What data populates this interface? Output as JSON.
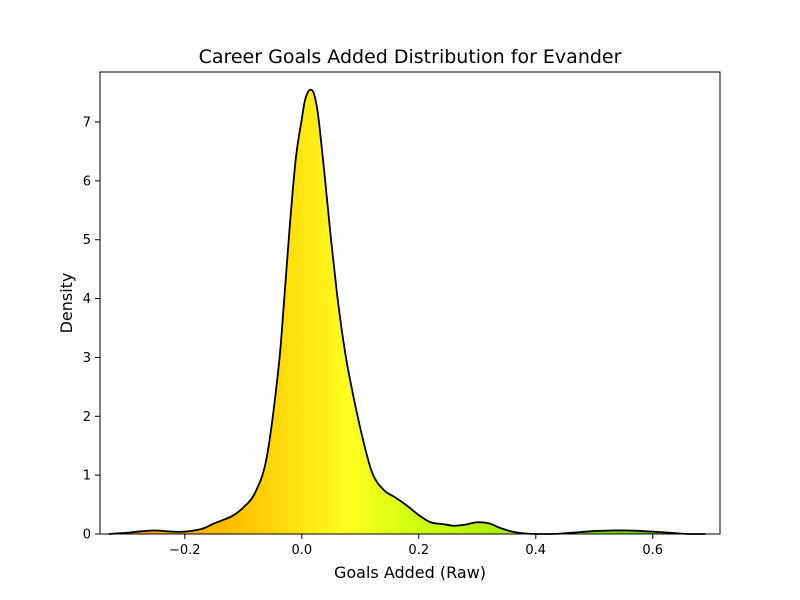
{
  "chart_data": {
    "type": "area",
    "title": "Career Goals Added Distribution for Evander",
    "xlabel": "Goals Added (Raw)",
    "ylabel": "Density",
    "xlim": [
      -0.345,
      0.715
    ],
    "ylim": [
      0,
      7.85
    ],
    "x_ticks": [
      -0.2,
      0.0,
      0.2,
      0.4,
      0.6
    ],
    "x_tick_labels": [
      "−0.2",
      "0.0",
      "0.2",
      "0.4",
      "0.6"
    ],
    "y_ticks": [
      0,
      1,
      2,
      3,
      4,
      5,
      6,
      7
    ],
    "y_tick_labels": [
      "0",
      "1",
      "2",
      "3",
      "4",
      "5",
      "6",
      "7"
    ],
    "grid": false,
    "line_color": "#000000",
    "fill_gradient": [
      {
        "x": -0.33,
        "color": "#ff8c00"
      },
      {
        "x": -0.1,
        "color": "#ffc400"
      },
      {
        "x": 0.0,
        "color": "#ffe612"
      },
      {
        "x": 0.08,
        "color": "#ffff20"
      },
      {
        "x": 0.18,
        "color": "#d4ff10"
      },
      {
        "x": 0.4,
        "color": "#9ee600"
      },
      {
        "x": 0.69,
        "color": "#4cc000"
      }
    ],
    "series": [
      {
        "x": [
          -0.33,
          -0.3,
          -0.27,
          -0.25,
          -0.22,
          -0.2,
          -0.17,
          -0.15,
          -0.12,
          -0.1,
          -0.08,
          -0.06,
          -0.04,
          -0.03,
          -0.02,
          -0.01,
          0.0,
          0.005,
          0.01,
          0.015,
          0.02,
          0.025,
          0.03,
          0.04,
          0.05,
          0.06,
          0.07,
          0.08,
          0.1,
          0.12,
          0.14,
          0.16,
          0.18,
          0.2,
          0.22,
          0.24,
          0.26,
          0.28,
          0.3,
          0.32,
          0.34,
          0.36,
          0.38,
          0.4,
          0.43,
          0.46,
          0.5,
          0.53,
          0.56,
          0.6,
          0.63,
          0.66,
          0.69
        ],
        "y": [
          0.0,
          0.02,
          0.05,
          0.06,
          0.04,
          0.04,
          0.09,
          0.18,
          0.3,
          0.45,
          0.7,
          1.3,
          2.8,
          4.0,
          5.3,
          6.4,
          7.05,
          7.35,
          7.5,
          7.55,
          7.5,
          7.3,
          6.95,
          6.0,
          5.0,
          4.1,
          3.35,
          2.75,
          1.8,
          1.05,
          0.75,
          0.62,
          0.48,
          0.32,
          0.2,
          0.17,
          0.14,
          0.16,
          0.2,
          0.18,
          0.1,
          0.04,
          0.01,
          0.0,
          0.0,
          0.02,
          0.05,
          0.06,
          0.06,
          0.04,
          0.02,
          0.0,
          0.0
        ]
      }
    ]
  }
}
